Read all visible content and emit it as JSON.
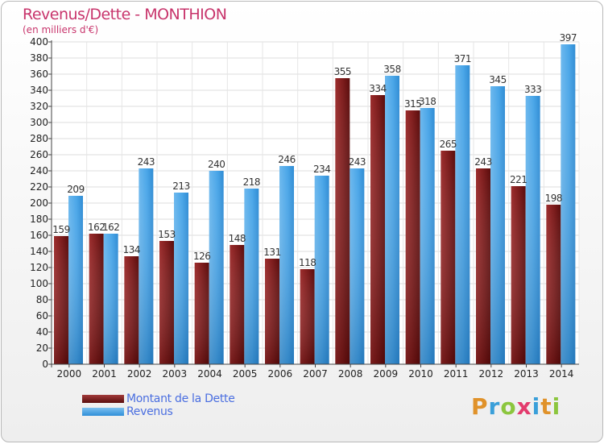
{
  "header": {
    "title": "Revenus/Dette - MONTHION",
    "subtitle": "(en milliers d'€)"
  },
  "legend": {
    "items": [
      {
        "label": "Montant de la Dette"
      },
      {
        "label": "Revenus"
      }
    ]
  },
  "logo": {
    "text": "Proxiti",
    "letters": [
      {
        "ch": "P",
        "color": "#e0922a"
      },
      {
        "ch": "r",
        "color": "#3a9fd9"
      },
      {
        "ch": "o",
        "color": "#8cc63e"
      },
      {
        "ch": "x",
        "color": "#e33b6d"
      },
      {
        "ch": "i",
        "color": "#3a9fd9"
      },
      {
        "ch": "t",
        "color": "#e0922a"
      },
      {
        "ch": "i",
        "color": "#8cc63e"
      }
    ]
  },
  "chart_data": {
    "type": "bar",
    "title": "Revenus/Dette - MONTHION",
    "subtitle": "(en milliers d'€)",
    "categories": [
      "2000",
      "2001",
      "2002",
      "2003",
      "2004",
      "2005",
      "2006",
      "2007",
      "2008",
      "2009",
      "2010",
      "2011",
      "2012",
      "2013",
      "2014"
    ],
    "series": [
      {
        "name": "Montant de la Dette",
        "color": "#8b1e1e",
        "values": [
          159,
          162,
          134,
          153,
          126,
          148,
          131,
          118,
          355,
          334,
          315,
          265,
          243,
          221,
          198
        ]
      },
      {
        "name": "Revenus",
        "color": "#4aa6e8",
        "values": [
          209,
          162,
          243,
          213,
          240,
          218,
          246,
          234,
          243,
          358,
          318,
          371,
          345,
          333,
          397
        ]
      }
    ],
    "yticks": [
      "0",
      "20",
      "40",
      "60",
      "80",
      "100",
      "120",
      "140",
      "160",
      "180",
      "200",
      "220",
      "240",
      "260",
      "280",
      "300",
      "320",
      "340",
      "360",
      "380",
      "400"
    ],
    "ylim": [
      0,
      400
    ],
    "grid": true,
    "legend_position": "bottom-left"
  }
}
